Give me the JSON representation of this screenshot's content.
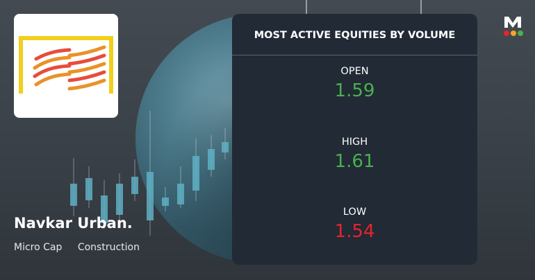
{
  "company": {
    "name": "Navkar Urban.",
    "tags": [
      "Micro Cap",
      "Construction"
    ]
  },
  "panel": {
    "title": "MOST ACTIVE EQUITIES BY VOLUME",
    "metrics": [
      {
        "label": "OPEN",
        "value": "1.59",
        "trend": "up"
      },
      {
        "label": "HIGH",
        "value": "1.61",
        "trend": "up"
      },
      {
        "label": "LOW",
        "value": "1.54",
        "trend": "down"
      }
    ]
  },
  "colors": {
    "up": "#4caf50",
    "down": "#e8232b",
    "panel_bg": "#212a35",
    "brand_dots": [
      "#e8232b",
      "#f5a623",
      "#4caf50"
    ]
  },
  "icons": {
    "brand": "marketsmojo-m-logo",
    "company_logo": "navkar-urban-logo"
  }
}
